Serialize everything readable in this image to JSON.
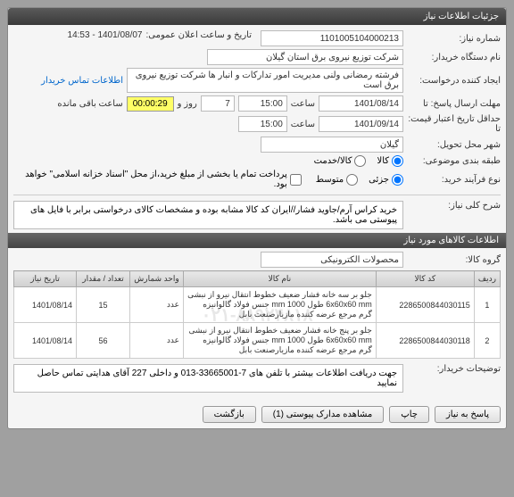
{
  "header": {
    "title": "جزئیات اطلاعات نیاز"
  },
  "basic": {
    "need_no_label": "شماره نیاز:",
    "need_no": "1101005104000213",
    "announce_label": "تاریخ و ساعت اعلان عمومی:",
    "announce_value": "1401/08/07 - 14:53",
    "org_label": "نام دستگاه خریدار:",
    "org_value": "شرکت توزیع نیروی برق استان گیلان",
    "creator_label": "ایجاد کننده درخواست:",
    "creator_value": "فرشته رمضانی ولنی مدیریت امور تدارکات و انبار ها شرکت توزیع نیروی برق است",
    "contact_link": "اطلاعات تماس خریدار",
    "deadline_label": "مهلت ارسال پاسخ: تا",
    "deadline_date": "1401/08/14",
    "time_label": "ساعت",
    "deadline_time": "15:00",
    "days_val": "7",
    "days_label": "روز و",
    "timer": "00:00:29",
    "remain_label": "ساعت باقی مانده",
    "validity_label": "حداقل تاریخ اعتبار قیمت: تا",
    "validity_date": "1401/09/14",
    "validity_time": "15:00",
    "delivery_city_label": "شهر محل تحویل:",
    "delivery_city": "گیلان",
    "category_label": "طبقه بندی موضوعی:",
    "goods_label": "کالا",
    "service_label": "کالا/خدمت",
    "proc_label": "نوع فرآیند خرید:",
    "proc_small": "جزئی",
    "proc_med": "متوسط",
    "proc_note": "پرداخت تمام یا بخشی از مبلغ خرید،از محل \"اسناد خزانه اسلامی\" خواهد بود."
  },
  "summary": {
    "label": "شرح کلی نیاز:",
    "text": "خرید کراس آرم/جاوید فشار//ایران کد کالا مشابه بوده و مشخصات کالای درخواستی برابر با فایل های پیوستی می باشد."
  },
  "goods_section": {
    "title": "اطلاعات کالاهای مورد نیاز",
    "group_label": "گروه کالا:",
    "group_value": "محصولات الکترونیکی"
  },
  "table": {
    "cols": [
      "ردیف",
      "کد کالا",
      "نام کالا",
      "واحد شمارش",
      "تعداد / مقدار",
      "تاریخ نیاز"
    ],
    "rows": [
      {
        "idx": "1",
        "code": "2286500844030115",
        "name": "جلو بر سه خانه فشار ضعیف خطوط انتقال نیرو از نبشی 6x60x60 mm طول 1000 mm جنس فولاد گالوانیزه گرم مرجع عرضه کننده مازیارصنعت بابل",
        "unit": "عدد",
        "qty": "15",
        "date": "1401/08/14"
      },
      {
        "idx": "2",
        "code": "2286500844030118",
        "name": "جلو بر پنج خانه فشار ضعیف خطوط انتقال نیرو از نبشی 6x60x60 mm طول 1000 mm جنس فولاد گالوانیزه گرم مرجع عرضه کننده مازیارصنعت بابل",
        "unit": "عدد",
        "qty": "56",
        "date": "1401/08/14"
      }
    ],
    "watermark": "۰۲۱-۸۸۹۲۴۸۱۸"
  },
  "buyer_note": {
    "label": "توضیحات خریدار:",
    "text": "جهت دریافت اطلاعات بیشتر با تلفن های 7-33665001-013 و داخلی 227 آقای هدایتی تماس حاصل نمایید"
  },
  "buttons": {
    "back": "بازگشت",
    "attach": "مشاهده مدارک پیوستی (1)",
    "print": "چاپ",
    "reply": "پاسخ به نیاز"
  }
}
